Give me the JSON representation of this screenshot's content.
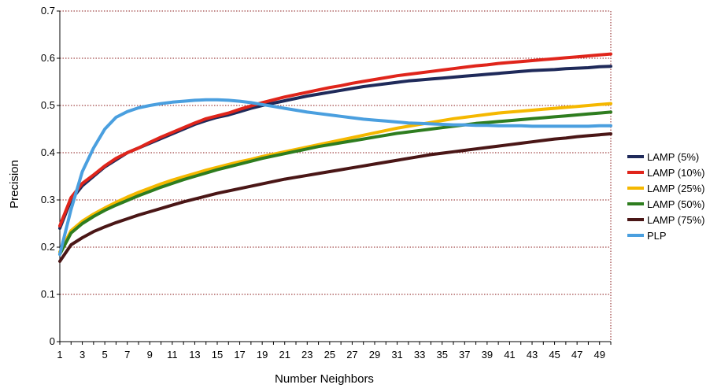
{
  "chart_data": {
    "type": "line",
    "xlabel": "Number Neighbors",
    "ylabel": "Precision",
    "xlim": [
      1,
      50
    ],
    "ylim": [
      0,
      0.7
    ],
    "x_ticks": [
      "1",
      "3",
      "5",
      "7",
      "9",
      "11",
      "13",
      "15",
      "17",
      "19",
      "21",
      "23",
      "25",
      "27",
      "29",
      "31",
      "33",
      "35",
      "37",
      "39",
      "41",
      "43",
      "45",
      "47",
      "49"
    ],
    "y_ticks": [
      "0",
      "0.1",
      "0.2",
      "0.3",
      "0.4",
      "0.5",
      "0.6",
      "0.7"
    ],
    "grid": "horizontal dotted",
    "legend_position": "right",
    "x": [
      1,
      2,
      3,
      4,
      5,
      6,
      7,
      8,
      9,
      10,
      11,
      12,
      13,
      14,
      15,
      16,
      17,
      18,
      19,
      20,
      21,
      22,
      23,
      24,
      25,
      26,
      27,
      28,
      29,
      30,
      31,
      32,
      33,
      34,
      35,
      36,
      37,
      38,
      39,
      40,
      41,
      42,
      43,
      44,
      45,
      46,
      47,
      48,
      49,
      50
    ],
    "series": [
      {
        "name": "LAMP (5%)",
        "color": "#1f2a5a",
        "values": [
          0.24,
          0.3,
          0.33,
          0.35,
          0.37,
          0.385,
          0.4,
          0.41,
          0.42,
          0.43,
          0.44,
          0.45,
          0.46,
          0.468,
          0.475,
          0.48,
          0.487,
          0.494,
          0.5,
          0.505,
          0.51,
          0.515,
          0.52,
          0.524,
          0.528,
          0.532,
          0.536,
          0.54,
          0.543,
          0.546,
          0.549,
          0.552,
          0.554,
          0.556,
          0.558,
          0.56,
          0.562,
          0.564,
          0.566,
          0.568,
          0.57,
          0.572,
          0.574,
          0.575,
          0.576,
          0.578,
          0.579,
          0.58,
          0.582,
          0.583
        ]
      },
      {
        "name": "LAMP (10%)",
        "color": "#e0251b",
        "values": [
          0.245,
          0.305,
          0.335,
          0.353,
          0.372,
          0.388,
          0.4,
          0.41,
          0.422,
          0.433,
          0.443,
          0.453,
          0.463,
          0.472,
          0.478,
          0.484,
          0.492,
          0.499,
          0.506,
          0.512,
          0.518,
          0.523,
          0.528,
          0.533,
          0.538,
          0.542,
          0.547,
          0.551,
          0.555,
          0.559,
          0.563,
          0.566,
          0.569,
          0.572,
          0.575,
          0.578,
          0.581,
          0.584,
          0.586,
          0.589,
          0.591,
          0.593,
          0.595,
          0.597,
          0.599,
          0.601,
          0.603,
          0.605,
          0.607,
          0.609
        ]
      },
      {
        "name": "LAMP (25%)",
        "color": "#f5b800",
        "values": [
          0.19,
          0.235,
          0.255,
          0.27,
          0.283,
          0.295,
          0.306,
          0.316,
          0.325,
          0.334,
          0.342,
          0.349,
          0.356,
          0.363,
          0.369,
          0.375,
          0.381,
          0.386,
          0.392,
          0.397,
          0.402,
          0.407,
          0.412,
          0.417,
          0.422,
          0.427,
          0.432,
          0.437,
          0.442,
          0.447,
          0.452,
          0.456,
          0.46,
          0.464,
          0.468,
          0.472,
          0.475,
          0.478,
          0.481,
          0.484,
          0.486,
          0.488,
          0.49,
          0.492,
          0.494,
          0.496,
          0.498,
          0.5,
          0.502,
          0.504
        ]
      },
      {
        "name": "LAMP (50%)",
        "color": "#2e7d1f",
        "values": [
          0.185,
          0.23,
          0.25,
          0.265,
          0.278,
          0.289,
          0.299,
          0.309,
          0.318,
          0.327,
          0.335,
          0.343,
          0.35,
          0.357,
          0.364,
          0.37,
          0.376,
          0.382,
          0.388,
          0.393,
          0.398,
          0.403,
          0.408,
          0.413,
          0.417,
          0.421,
          0.425,
          0.429,
          0.433,
          0.437,
          0.441,
          0.444,
          0.447,
          0.45,
          0.453,
          0.456,
          0.459,
          0.462,
          0.464,
          0.466,
          0.468,
          0.47,
          0.472,
          0.474,
          0.476,
          0.478,
          0.48,
          0.482,
          0.484,
          0.486
        ]
      },
      {
        "name": "LAMP (75%)",
        "color": "#4a1616",
        "values": [
          0.17,
          0.205,
          0.22,
          0.233,
          0.243,
          0.252,
          0.26,
          0.268,
          0.275,
          0.282,
          0.289,
          0.296,
          0.302,
          0.308,
          0.314,
          0.319,
          0.324,
          0.329,
          0.334,
          0.339,
          0.344,
          0.348,
          0.352,
          0.356,
          0.36,
          0.364,
          0.368,
          0.372,
          0.376,
          0.38,
          0.384,
          0.388,
          0.392,
          0.396,
          0.399,
          0.402,
          0.405,
          0.408,
          0.411,
          0.414,
          0.417,
          0.42,
          0.423,
          0.426,
          0.429,
          0.431,
          0.434,
          0.436,
          0.438,
          0.44
        ]
      },
      {
        "name": "PLP",
        "color": "#4a9fdf",
        "values": [
          0.185,
          0.28,
          0.36,
          0.41,
          0.45,
          0.475,
          0.487,
          0.495,
          0.5,
          0.504,
          0.507,
          0.509,
          0.511,
          0.512,
          0.512,
          0.511,
          0.509,
          0.506,
          0.502,
          0.498,
          0.494,
          0.49,
          0.486,
          0.483,
          0.48,
          0.477,
          0.474,
          0.471,
          0.469,
          0.467,
          0.465,
          0.463,
          0.462,
          0.461,
          0.46,
          0.459,
          0.459,
          0.458,
          0.458,
          0.457,
          0.457,
          0.457,
          0.456,
          0.456,
          0.456,
          0.456,
          0.456,
          0.456,
          0.457,
          0.457
        ]
      }
    ]
  }
}
